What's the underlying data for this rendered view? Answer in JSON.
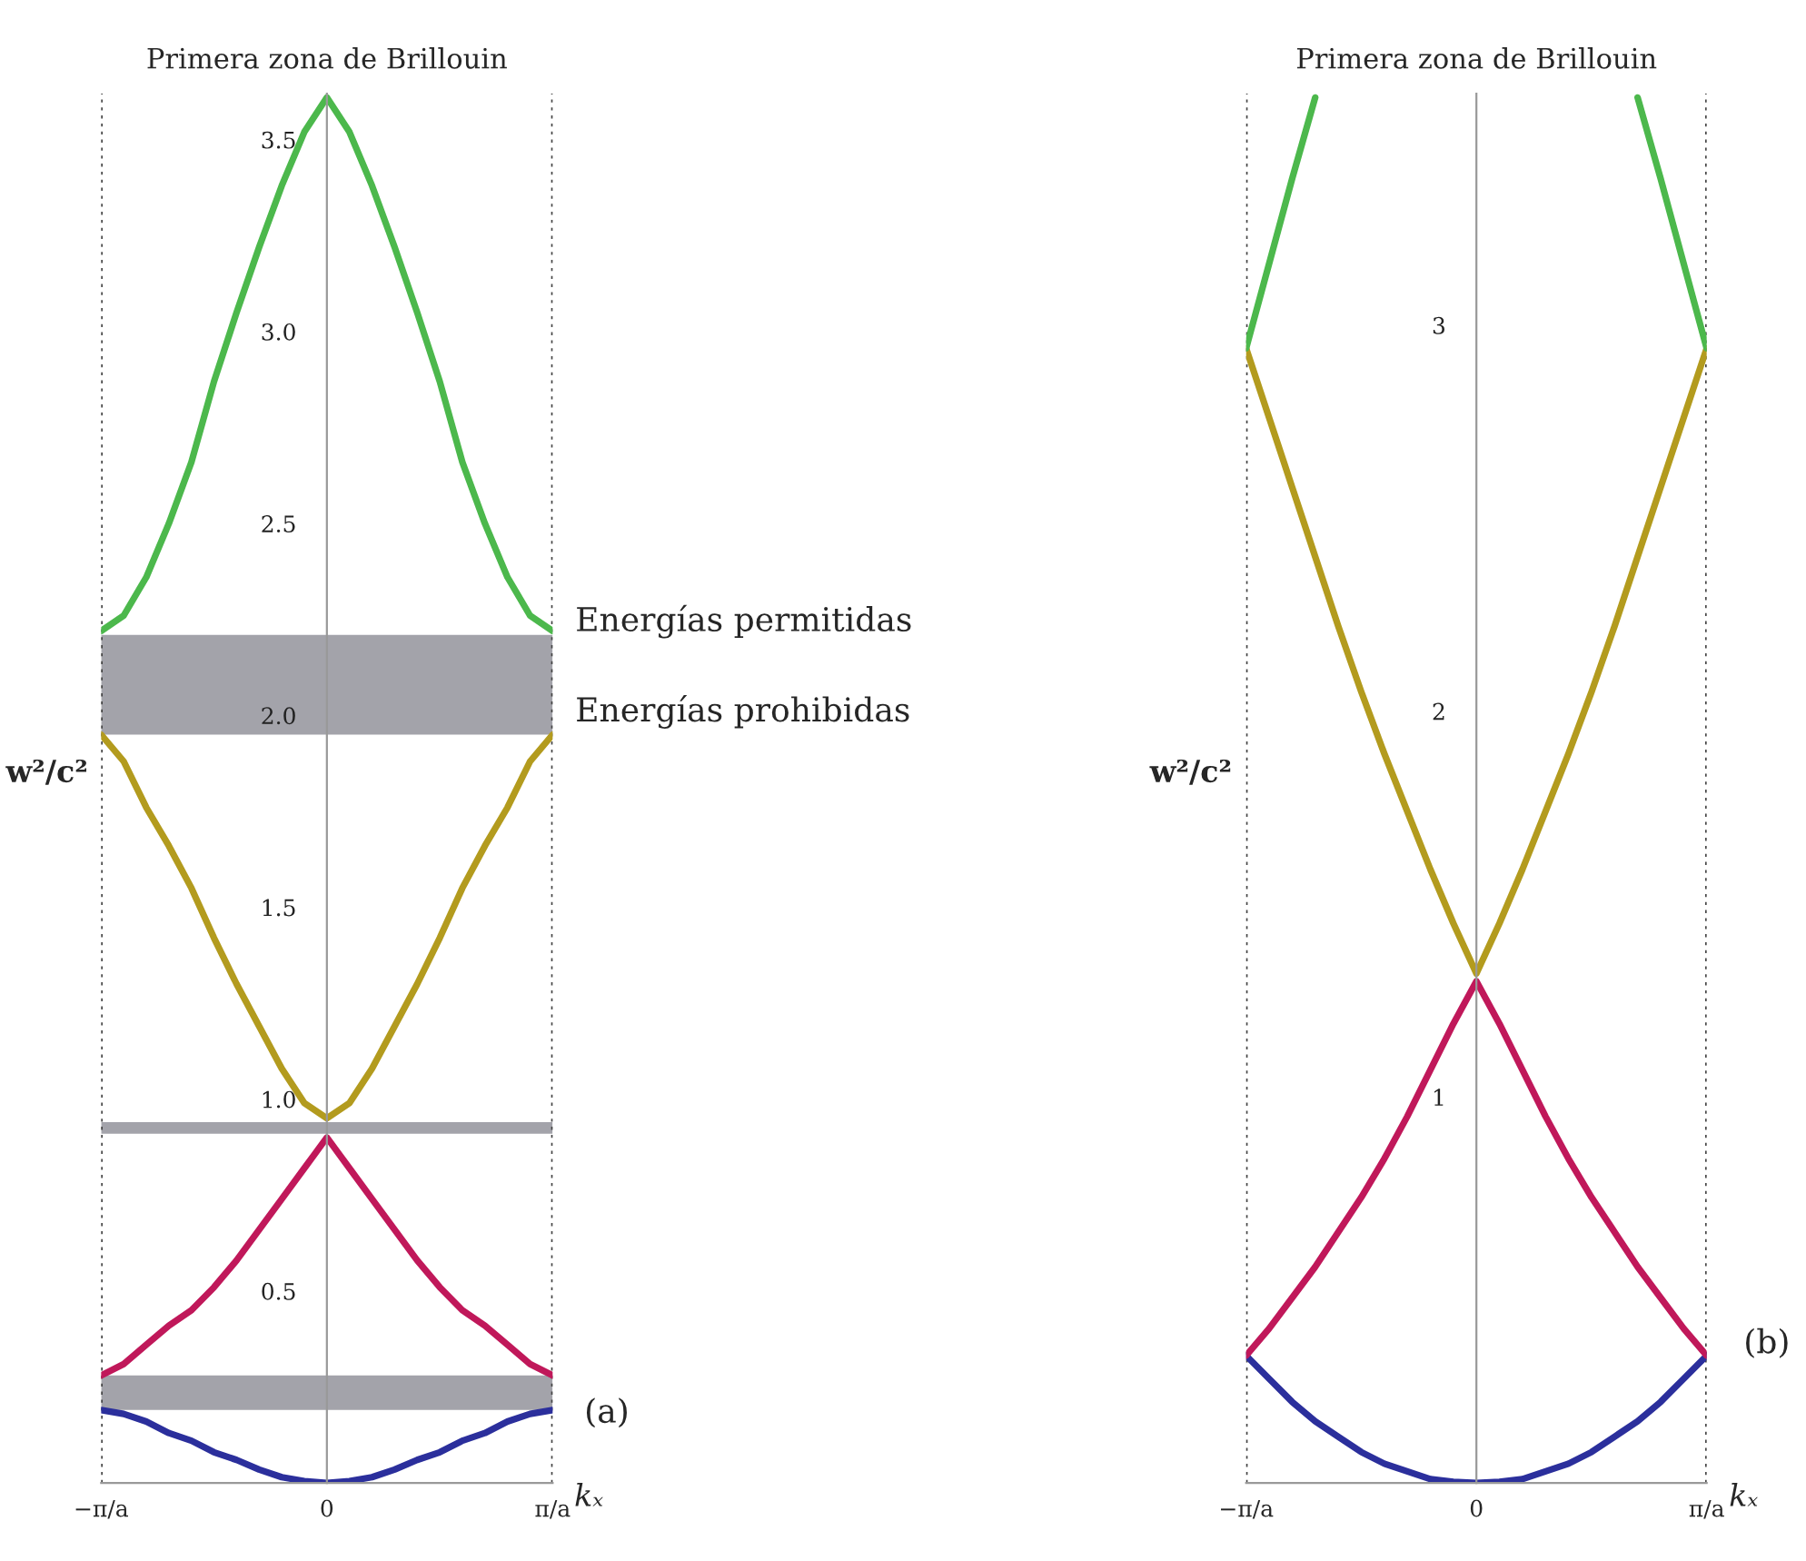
{
  "chart_data": [
    {
      "type": "line",
      "title": "Primera zona de Brillouin",
      "xlabel": "kₓ",
      "ylabel": "w²/c²",
      "categories": [
        "−π/a",
        null,
        null,
        null,
        null,
        null,
        null,
        null,
        null,
        null,
        "0",
        null,
        null,
        null,
        null,
        null,
        null,
        null,
        null,
        null,
        "π/a"
      ],
      "ylim": [
        0,
        3.62
      ],
      "yticks": [
        0.5,
        {
          "value": 1,
          "label": "1.0"
        },
        1.5,
        {
          "value": 2,
          "label": "2.0"
        },
        2.5,
        {
          "value": 3,
          "label": "3.0"
        },
        3.5
      ],
      "series": [
        {
          "color": "#2b2f9c",
          "values": [
            0.19,
            0.18,
            0.16,
            0.13,
            0.11,
            0.08,
            0.06,
            0.035,
            0.015,
            0.005,
            0,
            0.005,
            0.015,
            0.035,
            0.06,
            0.08,
            0.11,
            0.13,
            0.16,
            0.18,
            0.19
          ]
        },
        {
          "color": "#c0185a",
          "values": [
            0.28,
            0.31,
            0.36,
            0.41,
            0.45,
            0.51,
            0.58,
            0.66,
            0.74,
            0.82,
            0.9,
            0.82,
            0.74,
            0.66,
            0.58,
            0.51,
            0.45,
            0.41,
            0.36,
            0.31,
            0.28
          ]
        },
        {
          "color": "#b39b1e",
          "values": [
            1.95,
            1.88,
            1.76,
            1.66,
            1.55,
            1.42,
            1.3,
            1.19,
            1.08,
            0.99,
            0.95,
            0.99,
            1.08,
            1.19,
            1.3,
            1.42,
            1.55,
            1.66,
            1.76,
            1.88,
            1.95
          ]
        },
        {
          "color": "#4cb84c",
          "values": [
            2.22,
            2.26,
            2.36,
            2.5,
            2.66,
            2.87,
            3.05,
            3.22,
            3.38,
            3.52,
            3.61,
            3.52,
            3.38,
            3.22,
            3.05,
            2.87,
            2.66,
            2.5,
            2.36,
            2.26,
            2.22
          ]
        }
      ],
      "bands": [
        {
          "axis": "y",
          "from": 1.95,
          "to": 2.21,
          "color": "#a3a3aa"
        },
        {
          "axis": "y",
          "from": 0.91,
          "to": 0.94,
          "color": "#a3a3aa"
        },
        {
          "axis": "y",
          "from": 0.19,
          "to": 0.28,
          "color": "#a3a3aa"
        }
      ],
      "ref_lines": [
        {
          "axis": "x",
          "value": "−π/a",
          "line_style": "dotted"
        },
        {
          "axis": "x",
          "value": "π/a",
          "line_style": "dotted"
        }
      ],
      "annotations": [
        "Energías permitidas",
        "Energías prohibidas",
        "(a)"
      ],
      "grid": false,
      "legend": false
    },
    {
      "type": "line",
      "title": "Primera zona de Brillouin",
      "xlabel": "kₓ",
      "ylabel": "w²/c²",
      "categories": [
        "−π/a",
        null,
        null,
        null,
        null,
        null,
        null,
        null,
        null,
        null,
        "0",
        null,
        null,
        null,
        null,
        null,
        null,
        null,
        null,
        null,
        "π/a"
      ],
      "ylim": [
        0,
        3.6
      ],
      "yticks": [
        1,
        2,
        3
      ],
      "series": [
        {
          "color": "#2b2f9c",
          "values": [
            0.33,
            0.27,
            0.21,
            0.16,
            0.12,
            0.08,
            0.05,
            0.03,
            0.01,
            0.003,
            0,
            0.003,
            0.01,
            0.03,
            0.05,
            0.08,
            0.12,
            0.16,
            0.21,
            0.27,
            0.33
          ]
        },
        {
          "color": "#c0185a",
          "values": [
            0.33,
            0.4,
            0.48,
            0.56,
            0.65,
            0.74,
            0.84,
            0.95,
            1.07,
            1.19,
            1.3,
            1.19,
            1.07,
            0.95,
            0.84,
            0.74,
            0.65,
            0.56,
            0.48,
            0.4,
            0.33
          ]
        },
        {
          "color": "#b39b1e",
          "values": [
            2.94,
            2.76,
            2.58,
            2.4,
            2.22,
            2.05,
            1.89,
            1.74,
            1.59,
            1.45,
            1.32,
            1.45,
            1.59,
            1.74,
            1.89,
            2.05,
            2.22,
            2.4,
            2.58,
            2.76,
            2.94
          ]
        },
        {
          "color": "#4cb84c",
          "values": [
            2.94,
            3.16,
            3.38,
            3.59,
            null,
            null,
            null,
            null,
            null,
            null,
            null,
            null,
            null,
            null,
            null,
            null,
            null,
            3.59,
            3.38,
            3.16,
            2.94
          ]
        }
      ],
      "ref_lines": [
        {
          "axis": "x",
          "value": "−π/a",
          "line_style": "dotted"
        },
        {
          "axis": "x",
          "value": "π/a",
          "line_style": "dotted"
        }
      ],
      "annotations": [
        "(b)"
      ],
      "grid": false,
      "legend": false
    }
  ]
}
